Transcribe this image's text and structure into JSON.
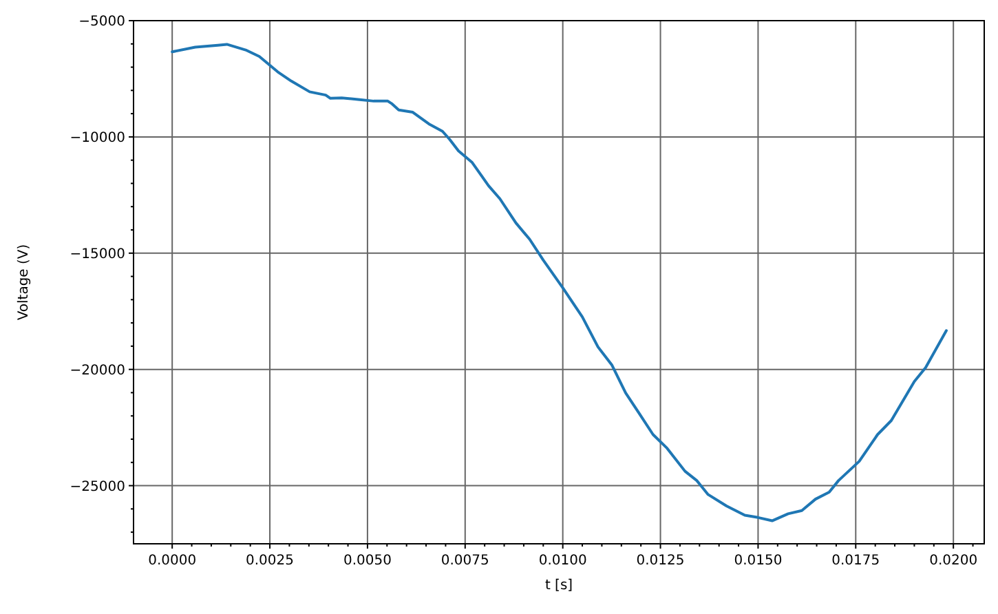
{
  "chart_data": {
    "type": "line",
    "xlabel": "t [s]",
    "ylabel": "Voltage (V)",
    "xlim": [
      -0.00099,
      0.02079
    ],
    "ylim": [
      -27500,
      -5000
    ],
    "xticks": [
      {
        "value": 0,
        "label": "0.0000"
      },
      {
        "value": 0.0005,
        "label": null
      },
      {
        "value": 0.001,
        "label": null
      },
      {
        "value": 0.0015,
        "label": null
      },
      {
        "value": 0.002,
        "label": null
      },
      {
        "value": 0.0025,
        "label": "0.0025"
      },
      {
        "value": 0.003,
        "label": null
      },
      {
        "value": 0.0035,
        "label": null
      },
      {
        "value": 0.004,
        "label": null
      },
      {
        "value": 0.0045,
        "label": null
      },
      {
        "value": 0.005,
        "label": "0.0050"
      },
      {
        "value": 0.0055,
        "label": null
      },
      {
        "value": 0.006,
        "label": null
      },
      {
        "value": 0.0065,
        "label": null
      },
      {
        "value": 0.007,
        "label": null
      },
      {
        "value": 0.0075,
        "label": "0.0075"
      },
      {
        "value": 0.008,
        "label": null
      },
      {
        "value": 0.0085,
        "label": null
      },
      {
        "value": 0.009,
        "label": null
      },
      {
        "value": 0.0095,
        "label": null
      },
      {
        "value": 0.01,
        "label": "0.0100"
      },
      {
        "value": 0.0105,
        "label": null
      },
      {
        "value": 0.011,
        "label": null
      },
      {
        "value": 0.0115,
        "label": null
      },
      {
        "value": 0.012,
        "label": null
      },
      {
        "value": 0.0125,
        "label": "0.0125"
      },
      {
        "value": 0.013,
        "label": null
      },
      {
        "value": 0.0135,
        "label": null
      },
      {
        "value": 0.014,
        "label": null
      },
      {
        "value": 0.0145,
        "label": null
      },
      {
        "value": 0.015,
        "label": "0.0150"
      },
      {
        "value": 0.0155,
        "label": null
      },
      {
        "value": 0.016,
        "label": null
      },
      {
        "value": 0.0165,
        "label": null
      },
      {
        "value": 0.017,
        "label": null
      },
      {
        "value": 0.0175,
        "label": "0.0175"
      },
      {
        "value": 0.018,
        "label": null
      },
      {
        "value": 0.0185,
        "label": null
      },
      {
        "value": 0.019,
        "label": null
      },
      {
        "value": 0.0195,
        "label": null
      },
      {
        "value": 0.02,
        "label": "0.0200"
      },
      {
        "value": 0.0205,
        "label": null
      }
    ],
    "yticks": [
      {
        "value": -27000,
        "label": null
      },
      {
        "value": -26000,
        "label": null
      },
      {
        "value": -25000,
        "label": "−25000"
      },
      {
        "value": -24000,
        "label": null
      },
      {
        "value": -23000,
        "label": null
      },
      {
        "value": -22000,
        "label": null
      },
      {
        "value": -21000,
        "label": null
      },
      {
        "value": -20000,
        "label": "−20000"
      },
      {
        "value": -19000,
        "label": null
      },
      {
        "value": -18000,
        "label": null
      },
      {
        "value": -17000,
        "label": null
      },
      {
        "value": -16000,
        "label": null
      },
      {
        "value": -15000,
        "label": "−15000"
      },
      {
        "value": -14000,
        "label": null
      },
      {
        "value": -13000,
        "label": null
      },
      {
        "value": -12000,
        "label": null
      },
      {
        "value": -11000,
        "label": null
      },
      {
        "value": -10000,
        "label": "−10000"
      },
      {
        "value": -9000,
        "label": null
      },
      {
        "value": -8000,
        "label": null
      },
      {
        "value": -7000,
        "label": null
      },
      {
        "value": -6000,
        "label": null
      },
      {
        "value": -5000,
        "label": "−5000"
      }
    ],
    "grid": true,
    "x": [
      0,
      0.00059,
      0.00117,
      0.0014,
      0.00188,
      0.00223,
      0.0027,
      0.00305,
      0.00352,
      0.00393,
      0.00405,
      0.00434,
      0.0048,
      0.00516,
      0.00552,
      0.00563,
      0.0058,
      0.00616,
      0.00657,
      0.00692,
      0.0071,
      0.00733,
      0.00768,
      0.0081,
      0.00839,
      0.0088,
      0.00915,
      0.0095,
      0.01,
      0.0105,
      0.0109,
      0.01126,
      0.01161,
      0.01196,
      0.01231,
      0.01267,
      0.01313,
      0.01343,
      0.01372,
      0.01419,
      0.01466,
      0.015,
      0.01536,
      0.01577,
      0.01612,
      0.01647,
      0.01682,
      0.01706,
      0.01759,
      0.01806,
      0.01841,
      0.019,
      0.01929,
      0.01982
    ],
    "series": [
      {
        "color": "#1f77b4",
        "values": [
          -6340,
          -6140,
          -6060,
          -6020,
          -6260,
          -6540,
          -7200,
          -7600,
          -8060,
          -8200,
          -8340,
          -8320,
          -8400,
          -8460,
          -8460,
          -8580,
          -8840,
          -8940,
          -9440,
          -9760,
          -10100,
          -10600,
          -11100,
          -12100,
          -12660,
          -13700,
          -14400,
          -15300,
          -16490,
          -17740,
          -19030,
          -19820,
          -21010,
          -21900,
          -22800,
          -23390,
          -24380,
          -24780,
          -25380,
          -25870,
          -26270,
          -26370,
          -26510,
          -26210,
          -26070,
          -25580,
          -25280,
          -24780,
          -23950,
          -22800,
          -22200,
          -20520,
          -19920,
          -18330
        ]
      }
    ]
  }
}
